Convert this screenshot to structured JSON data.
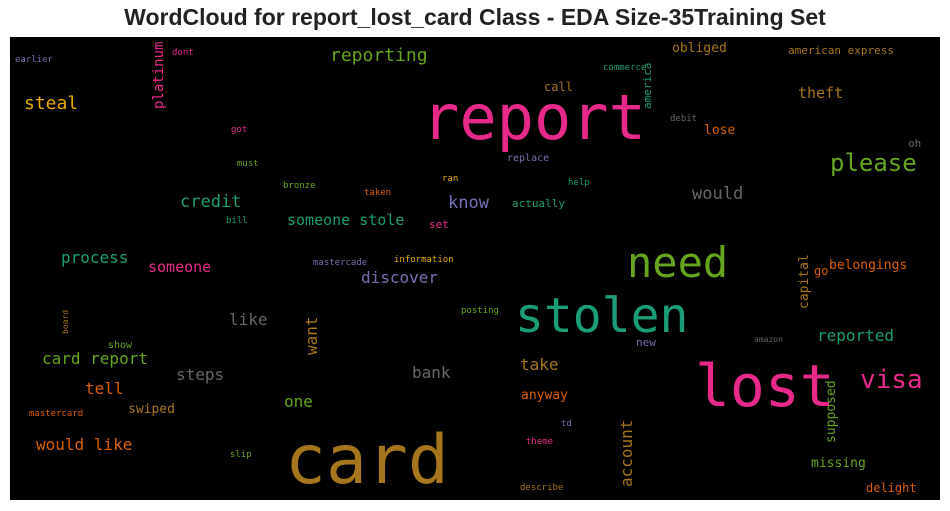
{
  "title": "WordCloud for report_lost_card Class - EDA Size-35Training Set",
  "words": [
    {
      "key": "report",
      "text": "report",
      "color": "#e7298a"
    },
    {
      "key": "card",
      "text": "card",
      "color": "#a6761d"
    },
    {
      "key": "lost",
      "text": "lost",
      "color": "#e7298a"
    },
    {
      "key": "stolen",
      "text": "stolen",
      "color": "#1b9e77"
    },
    {
      "key": "need",
      "text": "need",
      "color": "#66a61e"
    },
    {
      "key": "visa",
      "text": "visa",
      "color": "#e7298a"
    },
    {
      "key": "please",
      "text": "please",
      "color": "#66a61e"
    },
    {
      "key": "reporting",
      "text": "reporting",
      "color": "#66a61e"
    },
    {
      "key": "steal",
      "text": "steal",
      "color": "#e6ab02"
    },
    {
      "key": "platinum",
      "text": "platinum",
      "color": "#e7298a"
    },
    {
      "key": "dont",
      "text": "dont",
      "color": "#e7298a"
    },
    {
      "key": "earlier",
      "text": "earlier",
      "color": "#7570b3"
    },
    {
      "key": "obliged",
      "text": "obliged",
      "color": "#a6761d"
    },
    {
      "key": "american_express",
      "text": "american express",
      "color": "#a6761d"
    },
    {
      "key": "commerce",
      "text": "commerce",
      "color": "#1b9e77"
    },
    {
      "key": "america",
      "text": "america",
      "color": "#1b9e77"
    },
    {
      "key": "call",
      "text": "call",
      "color": "#a6761d"
    },
    {
      "key": "theft",
      "text": "theft",
      "color": "#a6761d"
    },
    {
      "key": "debit",
      "text": "debit",
      "color": "#666666"
    },
    {
      "key": "lose",
      "text": "lose",
      "color": "#d95f02"
    },
    {
      "key": "got",
      "text": "got",
      "color": "#e7298a"
    },
    {
      "key": "oh",
      "text": "oh",
      "color": "#666666"
    },
    {
      "key": "must",
      "text": "must",
      "color": "#66a61e"
    },
    {
      "key": "replace",
      "text": "replace",
      "color": "#7570b3"
    },
    {
      "key": "ran",
      "text": "ran",
      "color": "#e6ab02"
    },
    {
      "key": "help",
      "text": "help",
      "color": "#1b9e77"
    },
    {
      "key": "bronze",
      "text": "bronze",
      "color": "#66a61e"
    },
    {
      "key": "taken",
      "text": "taken",
      "color": "#d95f02"
    },
    {
      "key": "credit",
      "text": "credit",
      "color": "#1b9e77"
    },
    {
      "key": "know",
      "text": "know",
      "color": "#7570b3"
    },
    {
      "key": "actually",
      "text": "actually",
      "color": "#1b9e77"
    },
    {
      "key": "would",
      "text": "would",
      "color": "#666666"
    },
    {
      "key": "bill",
      "text": "bill",
      "color": "#1b9e77"
    },
    {
      "key": "set",
      "text": "set",
      "color": "#e7298a"
    },
    {
      "key": "someone_stole",
      "text": "someone stole",
      "color": "#1b9e77"
    },
    {
      "key": "process",
      "text": "process",
      "color": "#1b9e77"
    },
    {
      "key": "someone",
      "text": "someone",
      "color": "#e7298a"
    },
    {
      "key": "mastercade",
      "text": "mastercade",
      "color": "#7570b3"
    },
    {
      "key": "information",
      "text": "information",
      "color": "#e6ab02"
    },
    {
      "key": "discover",
      "text": "discover",
      "color": "#7570b3"
    },
    {
      "key": "belongings",
      "text": "belongings",
      "color": "#d95f02"
    },
    {
      "key": "capital",
      "text": "capital",
      "color": "#a6761d"
    },
    {
      "key": "go",
      "text": "go",
      "color": "#d95f02"
    },
    {
      "key": "board",
      "text": "board",
      "color": "#a6761d"
    },
    {
      "key": "like",
      "text": "like",
      "color": "#666666"
    },
    {
      "key": "want",
      "text": "want",
      "color": "#a6761d"
    },
    {
      "key": "posting",
      "text": "posting",
      "color": "#66a61e"
    },
    {
      "key": "amazon",
      "text": "amazon",
      "color": "#666666"
    },
    {
      "key": "reported",
      "text": "reported",
      "color": "#1b9e77"
    },
    {
      "key": "show",
      "text": "show",
      "color": "#66a61e"
    },
    {
      "key": "new",
      "text": "new",
      "color": "#7570b3"
    },
    {
      "key": "card_report",
      "text": "card report",
      "color": "#66a61e"
    },
    {
      "key": "steps",
      "text": "steps",
      "color": "#666666"
    },
    {
      "key": "bank",
      "text": "bank",
      "color": "#666666"
    },
    {
      "key": "take",
      "text": "take",
      "color": "#a6761d"
    },
    {
      "key": "tell",
      "text": "tell",
      "color": "#d95f02"
    },
    {
      "key": "one",
      "text": "one",
      "color": "#66a61e"
    },
    {
      "key": "anyway",
      "text": "anyway",
      "color": "#d95f02"
    },
    {
      "key": "supposed",
      "text": "supposed",
      "color": "#66a61e"
    },
    {
      "key": "swiped",
      "text": "swiped",
      "color": "#a6761d"
    },
    {
      "key": "mastercard",
      "text": "mastercard",
      "color": "#d95f02"
    },
    {
      "key": "account",
      "text": "account",
      "color": "#a6761d"
    },
    {
      "key": "td",
      "text": "td",
      "color": "#7570b3"
    },
    {
      "key": "would_like",
      "text": "would like",
      "color": "#d95f02"
    },
    {
      "key": "theme",
      "text": "theme",
      "color": "#e7298a"
    },
    {
      "key": "slip",
      "text": "slip",
      "color": "#66a61e"
    },
    {
      "key": "missing",
      "text": "missing",
      "color": "#66a61e"
    },
    {
      "key": "describe",
      "text": "describe",
      "color": "#a6761d"
    },
    {
      "key": "delight",
      "text": "delight",
      "color": "#d95f02"
    }
  ]
}
